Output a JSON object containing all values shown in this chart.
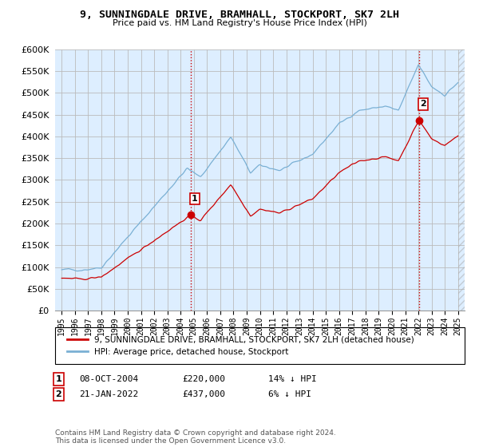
{
  "title": "9, SUNNINGDALE DRIVE, BRAMHALL, STOCKPORT, SK7 2LH",
  "subtitle": "Price paid vs. HM Land Registry's House Price Index (HPI)",
  "legend_house": "9, SUNNINGDALE DRIVE, BRAMHALL, STOCKPORT, SK7 2LH (detached house)",
  "legend_hpi": "HPI: Average price, detached house, Stockport",
  "sale1_date": "08-OCT-2004",
  "sale1_price": "£220,000",
  "sale1_hpi": "14% ↓ HPI",
  "sale2_date": "21-JAN-2022",
  "sale2_price": "£437,000",
  "sale2_hpi": "6% ↓ HPI",
  "footer": "Contains HM Land Registry data © Crown copyright and database right 2024.\nThis data is licensed under the Open Government Licence v3.0.",
  "house_color": "#cc0000",
  "hpi_color": "#7ab0d4",
  "bg_color": "#ddeeff",
  "ylim": [
    0,
    600000
  ],
  "yticks": [
    0,
    50000,
    100000,
    150000,
    200000,
    250000,
    300000,
    350000,
    400000,
    450000,
    500000,
    550000,
    600000
  ],
  "sale1_x": 2004.77,
  "sale1_y": 220000,
  "sale2_x": 2022.05,
  "sale2_y": 437000,
  "xlim": [
    1994.5,
    2025.5
  ]
}
